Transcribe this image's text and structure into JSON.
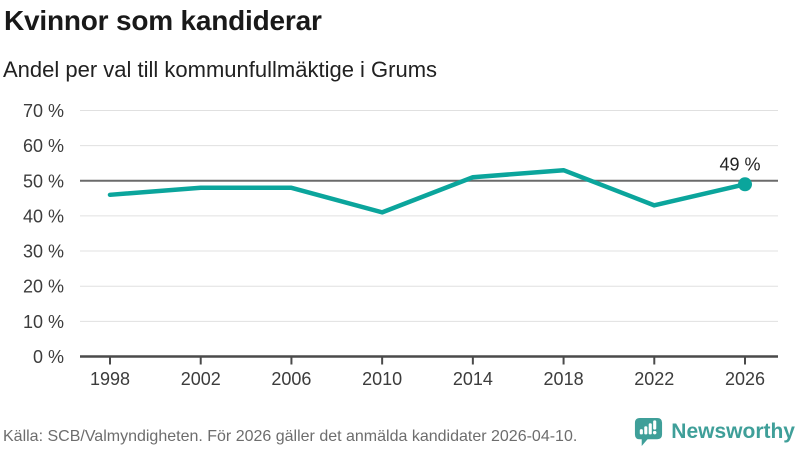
{
  "header": {
    "title": "Kvinnor som kandiderar",
    "subtitle": "Andel per val till kommunfullmäktige i Grums"
  },
  "chart_data": {
    "type": "line",
    "title": "Kvinnor som kandiderar",
    "subtitle": "Andel per val till kommunfullmäktige i Grums",
    "categories": [
      "1998",
      "2002",
      "2006",
      "2010",
      "2014",
      "2018",
      "2022",
      "2026"
    ],
    "values": [
      46,
      48,
      48,
      41,
      51,
      53,
      43,
      49
    ],
    "unit": "%",
    "ylim": [
      0,
      70
    ],
    "ytick_step": 10,
    "ytick_suffix": " %",
    "xlabel": "",
    "ylabel": "",
    "grid": true,
    "legend": "none",
    "reference_line": 50,
    "last_point_label": "49 %",
    "line_color": "#0ba59c"
  },
  "colors": {
    "accent": "#0ba59c",
    "brand": "#3f9f99",
    "gridline": "#e0e0e0",
    "reference_line": "#6b6b6b",
    "axis": "#4a4a4a",
    "axis_text": "#3c3c3c",
    "annotation_text": "#222222"
  },
  "footer": {
    "source": "Källa: SCB/Valmyndigheten. För 2026 gäller det anmälda kandidater 2026-04-10."
  },
  "branding": {
    "name": "Newsworthy",
    "icon": "newsworthy-speech-bubble-barchart-icon"
  }
}
